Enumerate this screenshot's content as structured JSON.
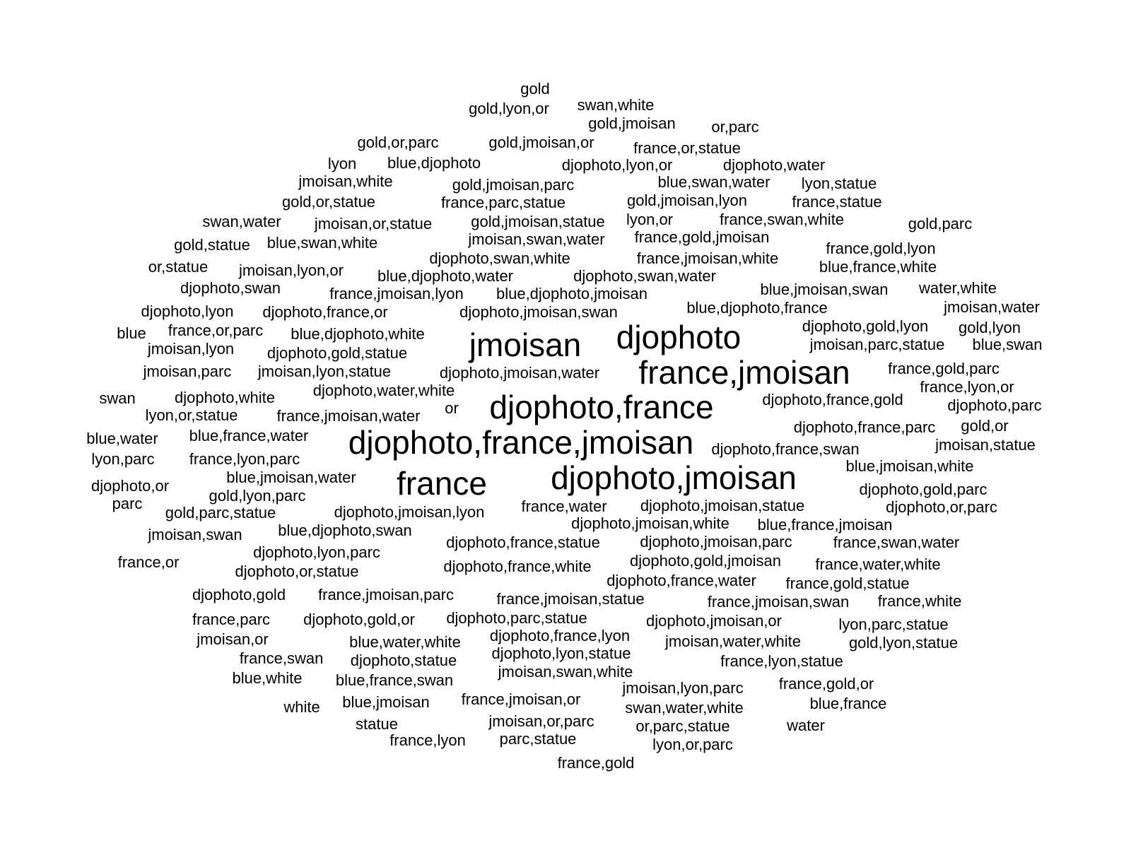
{
  "words": [
    "gold",
    "swan,white",
    "gold,lyon,or",
    "gold,jmoisan",
    "or,parc",
    "gold,or,parc",
    "gold,jmoisan,or",
    "france,or,statue",
    "lyon",
    "blue,djophoto",
    "djophoto,lyon,or",
    "djophoto,water",
    "jmoisan,white",
    "gold,jmoisan,parc",
    "blue,swan,water",
    "lyon,statue",
    "gold,or,statue",
    "france,parc,statue",
    "gold,jmoisan,lyon",
    "france,statue",
    "swan,water",
    "jmoisan,or,statue",
    "gold,jmoisan,statue",
    "lyon,or",
    "france,swan,white",
    "gold,parc",
    "gold,statue",
    "blue,swan,white",
    "jmoisan,swan,water",
    "france,gold,jmoisan",
    "france,gold,lyon",
    "djophoto,swan,white",
    "france,jmoisan,white",
    "blue,france,white",
    "or,statue",
    "jmoisan,lyon,or",
    "blue,djophoto,water",
    "djophoto,swan,water",
    "djophoto,swan",
    "blue,jmoisan,swan",
    "water,white",
    "france,jmoisan,lyon",
    "blue,djophoto,jmoisan",
    "blue,djophoto,france",
    "jmoisan,water",
    "djophoto,lyon",
    "djophoto,france,or",
    "djophoto,jmoisan,swan",
    "djophoto,gold,lyon",
    "gold,lyon",
    "blue",
    "france,or,parc",
    "blue,djophoto,white",
    "jmoisan",
    "djophoto",
    "jmoisan,parc,statue",
    "blue,swan",
    "jmoisan,lyon",
    "djophoto,gold,statue",
    "france,jmoisan",
    "france,gold,parc",
    "jmoisan,parc",
    "jmoisan,lyon,statue",
    "djophoto,jmoisan,water",
    "france,lyon,or",
    "djophoto,water,white",
    "swan",
    "djophoto,white",
    "djophoto,france",
    "djophoto,france,gold",
    "djophoto,parc",
    "or",
    "lyon,or,statue",
    "france,jmoisan,water",
    "djophoto,france,parc",
    "gold,or",
    "blue,water",
    "blue,france,water",
    "djophoto,france,jmoisan",
    "djophoto,france,swan",
    "jmoisan,statue",
    "lyon,parc",
    "france,lyon,parc",
    "blue,jmoisan,white",
    "blue,jmoisan,water",
    "france",
    "djophoto,jmoisan",
    "djophoto,or",
    "djophoto,gold,parc",
    "gold,lyon,parc",
    "parc",
    "france,water",
    "djophoto,jmoisan,statue",
    "djophoto,or,parc",
    "gold,parc,statue",
    "djophoto,jmoisan,lyon",
    "djophoto,jmoisan,white",
    "blue,france,jmoisan",
    "jmoisan,swan",
    "blue,djophoto,swan",
    "djophoto,france,statue",
    "djophoto,jmoisan,parc",
    "france,swan,water",
    "djophoto,lyon,parc",
    "france,or",
    "djophoto,gold,jmoisan",
    "france,water,white",
    "djophoto,or,statue",
    "djophoto,france,white",
    "djophoto,france,water",
    "france,gold,statue",
    "djophoto,gold",
    "france,jmoisan,parc",
    "france,jmoisan,statue",
    "france,jmoisan,swan",
    "france,white",
    "france,parc",
    "djophoto,gold,or",
    "djophoto,parc,statue",
    "djophoto,jmoisan,or",
    "lyon,parc,statue",
    "djophoto,france,lyon",
    "jmoisan,or",
    "blue,water,white",
    "jmoisan,water,white",
    "gold,lyon,statue",
    "djophoto,lyon,statue",
    "france,swan",
    "djophoto,statue",
    "france,lyon,statue",
    "jmoisan,swan,white",
    "blue,white",
    "blue,france,swan",
    "france,gold,or",
    "jmoisan,lyon,parc",
    "france,jmoisan,or",
    "blue,france",
    "white",
    "blue,jmoisan",
    "swan,water,white",
    "jmoisan,or,parc",
    "statue",
    "or,parc,statue",
    "water",
    "france,lyon",
    "parc,statue",
    "lyon,or,parc",
    "france,gold"
  ]
}
